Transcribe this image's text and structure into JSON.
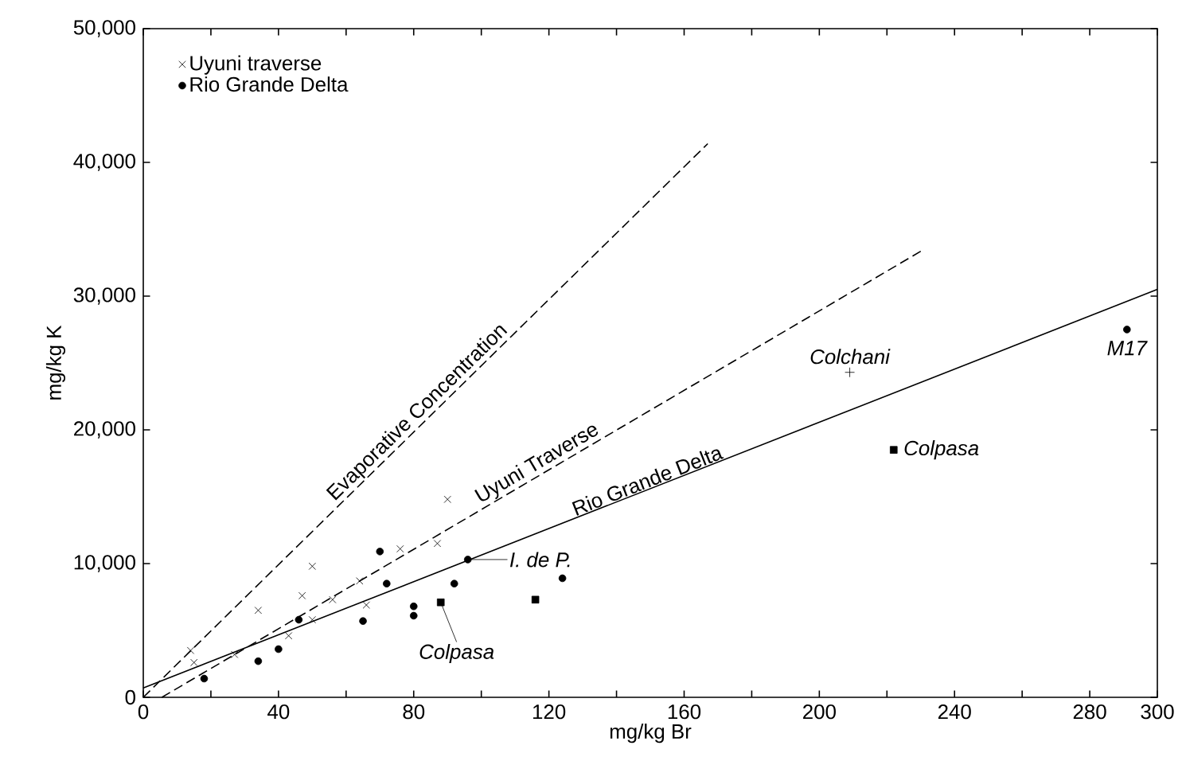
{
  "chart_data": {
    "type": "scatter",
    "xlabel": "mg/kg Br",
    "ylabel": "mg/kg K",
    "xlim": [
      0,
      300
    ],
    "ylim": [
      0,
      50000
    ],
    "xticks": [
      0,
      {
        "value": 20,
        "label": null
      },
      40,
      {
        "value": 60,
        "label": null
      },
      80,
      {
        "value": 100,
        "label": null
      },
      120,
      {
        "value": 140,
        "label": null
      },
      160,
      {
        "value": 180,
        "label": null
      },
      200,
      {
        "value": 220,
        "label": null
      },
      240,
      {
        "value": 260,
        "label": null
      },
      280,
      300
    ],
    "yticks": [
      0,
      {
        "value": 10000,
        "label": "10,000"
      },
      {
        "value": 20000,
        "label": "20,000"
      },
      {
        "value": 30000,
        "label": "30,000"
      },
      {
        "value": 40000,
        "label": "40,000"
      },
      {
        "value": 50000,
        "label": "50,000"
      }
    ],
    "legend": "top left",
    "grid": false,
    "series": [
      {
        "name": "Uyuni traverse",
        "marker": "cross",
        "color": "#000000",
        "x": [
          14,
          15,
          27,
          34,
          43,
          47,
          50,
          50,
          56,
          64,
          66,
          76,
          87,
          90
        ],
        "values": [
          3500,
          2600,
          3200,
          6500,
          4600,
          7600,
          9800,
          5800,
          7300,
          8700,
          6900,
          11100,
          11500,
          14800
        ]
      },
      {
        "name": "Rio Grande Delta",
        "marker": "circle",
        "color": "#000000",
        "x": [
          18,
          34,
          40,
          46,
          65,
          70,
          72,
          80,
          80,
          92,
          96,
          124,
          291
        ],
        "values": [
          1400,
          2700,
          3600,
          5800,
          5700,
          10900,
          8500,
          6800,
          6100,
          8500,
          10300,
          8900,
          27500
        ]
      },
      {
        "marker": "square",
        "color": "#000000",
        "x": [
          88,
          116,
          222
        ],
        "values": [
          7100,
          7300,
          18500
        ]
      },
      {
        "marker": "plus",
        "color": "#000000",
        "x": [
          209
        ],
        "values": [
          24300
        ]
      },
      {
        "name": "Evaporative Concentration",
        "type": "line",
        "line_style": "dashed",
        "color": "#000000",
        "x": [
          0,
          167
        ],
        "values": [
          0,
          41400
        ]
      },
      {
        "name": "Uyuni Traverse",
        "type": "line",
        "line_style": "dashed",
        "color": "#000000",
        "x": [
          5.5,
          231
        ],
        "values": [
          0,
          33500
        ]
      },
      {
        "name": "Rio Grande Delta",
        "type": "line",
        "line_style": "solid",
        "color": "#000000",
        "x": [
          0,
          300
        ],
        "values": [
          700,
          30500
        ]
      }
    ],
    "annotations": [
      {
        "text": "Colchani",
        "x": 209,
        "y": 24300
      },
      {
        "text": "Colpasa",
        "x": 222,
        "y": 18500
      },
      {
        "text": "Colpasa",
        "x": 88,
        "y": 7100
      },
      {
        "text": "I. de P.",
        "x": 96,
        "y": 10300
      },
      {
        "text": "M17",
        "x": 291,
        "y": 27500
      }
    ]
  }
}
